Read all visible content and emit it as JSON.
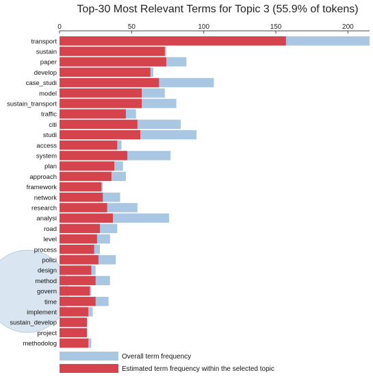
{
  "chart_data": {
    "type": "bar",
    "orientation": "horizontal",
    "title": "Top-30 Most Relevant Terms for Topic 3 (55.9% of tokens)",
    "xlim": [
      0,
      215
    ],
    "xticks": [
      0,
      50,
      100,
      150,
      200
    ],
    "categories": [
      "transport",
      "sustain",
      "paper",
      "develop",
      "case_studi",
      "model",
      "sustain_transport",
      "traffic",
      "citi",
      "studi",
      "access",
      "system",
      "plan",
      "approach",
      "framework",
      "network",
      "research",
      "analysi",
      "road",
      "level",
      "process",
      "polici",
      "design",
      "method",
      "govern",
      "time",
      "implement",
      "sustain_develop",
      "project",
      "methodolog"
    ],
    "series": [
      {
        "name": "Overall term frequency",
        "color": "#a9c6e3",
        "values": [
          215,
          74,
          88,
          65,
          107,
          73,
          81,
          53,
          84,
          95,
          43,
          77,
          44,
          46,
          30,
          42,
          54,
          76,
          40,
          35,
          28,
          39,
          25,
          35,
          22,
          34,
          23,
          19,
          19,
          22
        ]
      },
      {
        "name": "Estimated term frequency within the selected topic",
        "color": "#d5444d",
        "values": [
          157,
          73,
          74,
          63,
          69,
          57,
          57,
          46,
          54,
          56,
          40,
          47,
          38,
          36,
          29,
          30,
          33,
          37,
          28,
          26,
          24,
          27,
          22,
          25,
          21,
          25,
          20,
          19,
          19,
          20
        ]
      }
    ],
    "legend": {
      "placement": "bottom-left",
      "entries": [
        "Overall term frequency",
        "Estimated term frequency within the selected topic"
      ]
    },
    "grid": false
  }
}
